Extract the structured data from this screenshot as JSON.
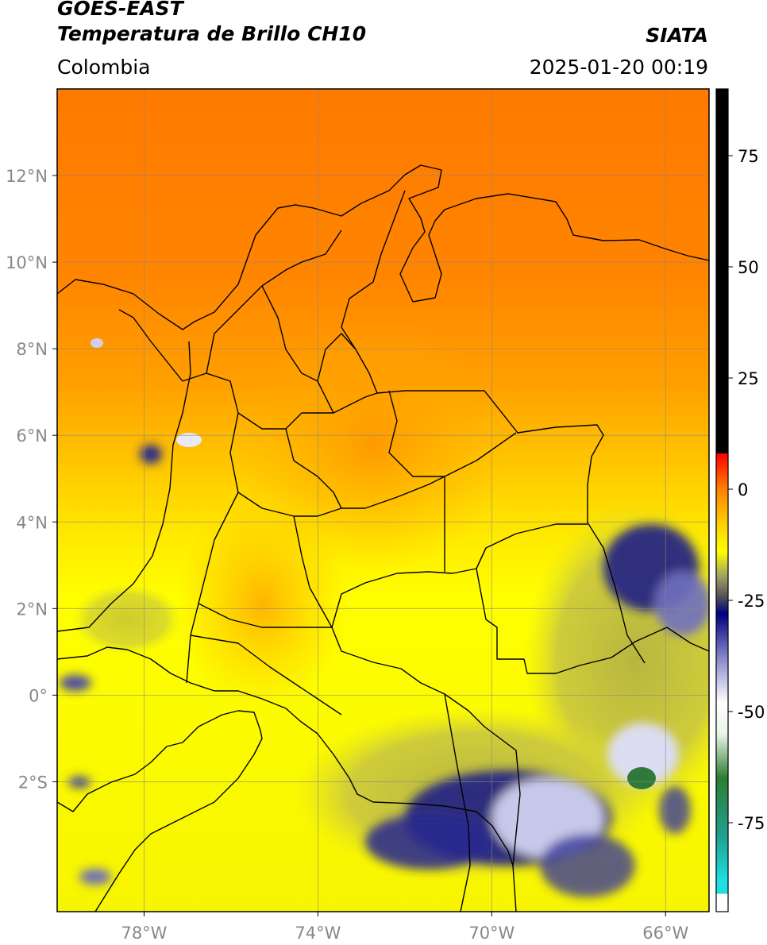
{
  "header": {
    "title_line1": "GOES-EAST",
    "title_line2": "Temperatura de Brillo CH10",
    "region": "Colombia",
    "source": "SIATA",
    "datetime": "2025-01-20 00:19"
  },
  "map": {
    "lon_range": [
      -80,
      -65
    ],
    "lat_range": [
      -5,
      14
    ],
    "lon_ticks": [
      {
        "value": -78,
        "label": "78°W"
      },
      {
        "value": -74,
        "label": "74°W"
      },
      {
        "value": -70,
        "label": "70°W"
      },
      {
        "value": -66,
        "label": "66°W"
      }
    ],
    "lat_ticks": [
      {
        "value": 12,
        "label": "12°N"
      },
      {
        "value": 10,
        "label": "10°N"
      },
      {
        "value": 8,
        "label": "8°N"
      },
      {
        "value": 6,
        "label": "6°N"
      },
      {
        "value": 4,
        "label": "4°N"
      },
      {
        "value": 2,
        "label": "2°N"
      },
      {
        "value": 0,
        "label": "0°"
      },
      {
        "value": -2,
        "label": "2°S"
      }
    ]
  },
  "colorbar": {
    "range": [
      -95,
      90
    ],
    "ticks": [
      {
        "value": 75,
        "label": "75"
      },
      {
        "value": 50,
        "label": "50"
      },
      {
        "value": 25,
        "label": "25"
      },
      {
        "value": 0,
        "label": "0"
      },
      {
        "value": -25,
        "label": "-25"
      },
      {
        "value": -50,
        "label": "-50"
      },
      {
        "value": -75,
        "label": "-75"
      }
    ],
    "stops": [
      {
        "value": -95,
        "color": "#ffffff"
      },
      {
        "value": -91,
        "color": "#ffffff"
      },
      {
        "value": -91,
        "color": "#1ee0e0"
      },
      {
        "value": -88,
        "color": "#1ee0e0"
      },
      {
        "value": -78,
        "color": "#20a090"
      },
      {
        "value": -65,
        "color": "#2e7d32"
      },
      {
        "value": -55,
        "color": "#e8f5e9"
      },
      {
        "value": -48,
        "color": "#ffffff"
      },
      {
        "value": -38,
        "color": "#8888cc"
      },
      {
        "value": -28,
        "color": "#000080"
      },
      {
        "value": -24,
        "color": "#555555"
      },
      {
        "value": -20,
        "color": "#999966"
      },
      {
        "value": -14,
        "color": "#ffff00"
      },
      {
        "value": -8,
        "color": "#ffd200"
      },
      {
        "value": 0,
        "color": "#ff8000"
      },
      {
        "value": 8,
        "color": "#ff0000"
      },
      {
        "value": 8,
        "color": "#000000"
      },
      {
        "value": 90,
        "color": "#000000"
      }
    ]
  },
  "colors": {
    "warm_orange": "#ff7e00",
    "mid_orange": "#ffa800",
    "gold": "#ffd400",
    "yellow": "#ffff00",
    "olive": "#c9c640",
    "navy": "#1a1a80",
    "cloud_white": "#e8e8f4",
    "green": "#2f7a3a"
  }
}
